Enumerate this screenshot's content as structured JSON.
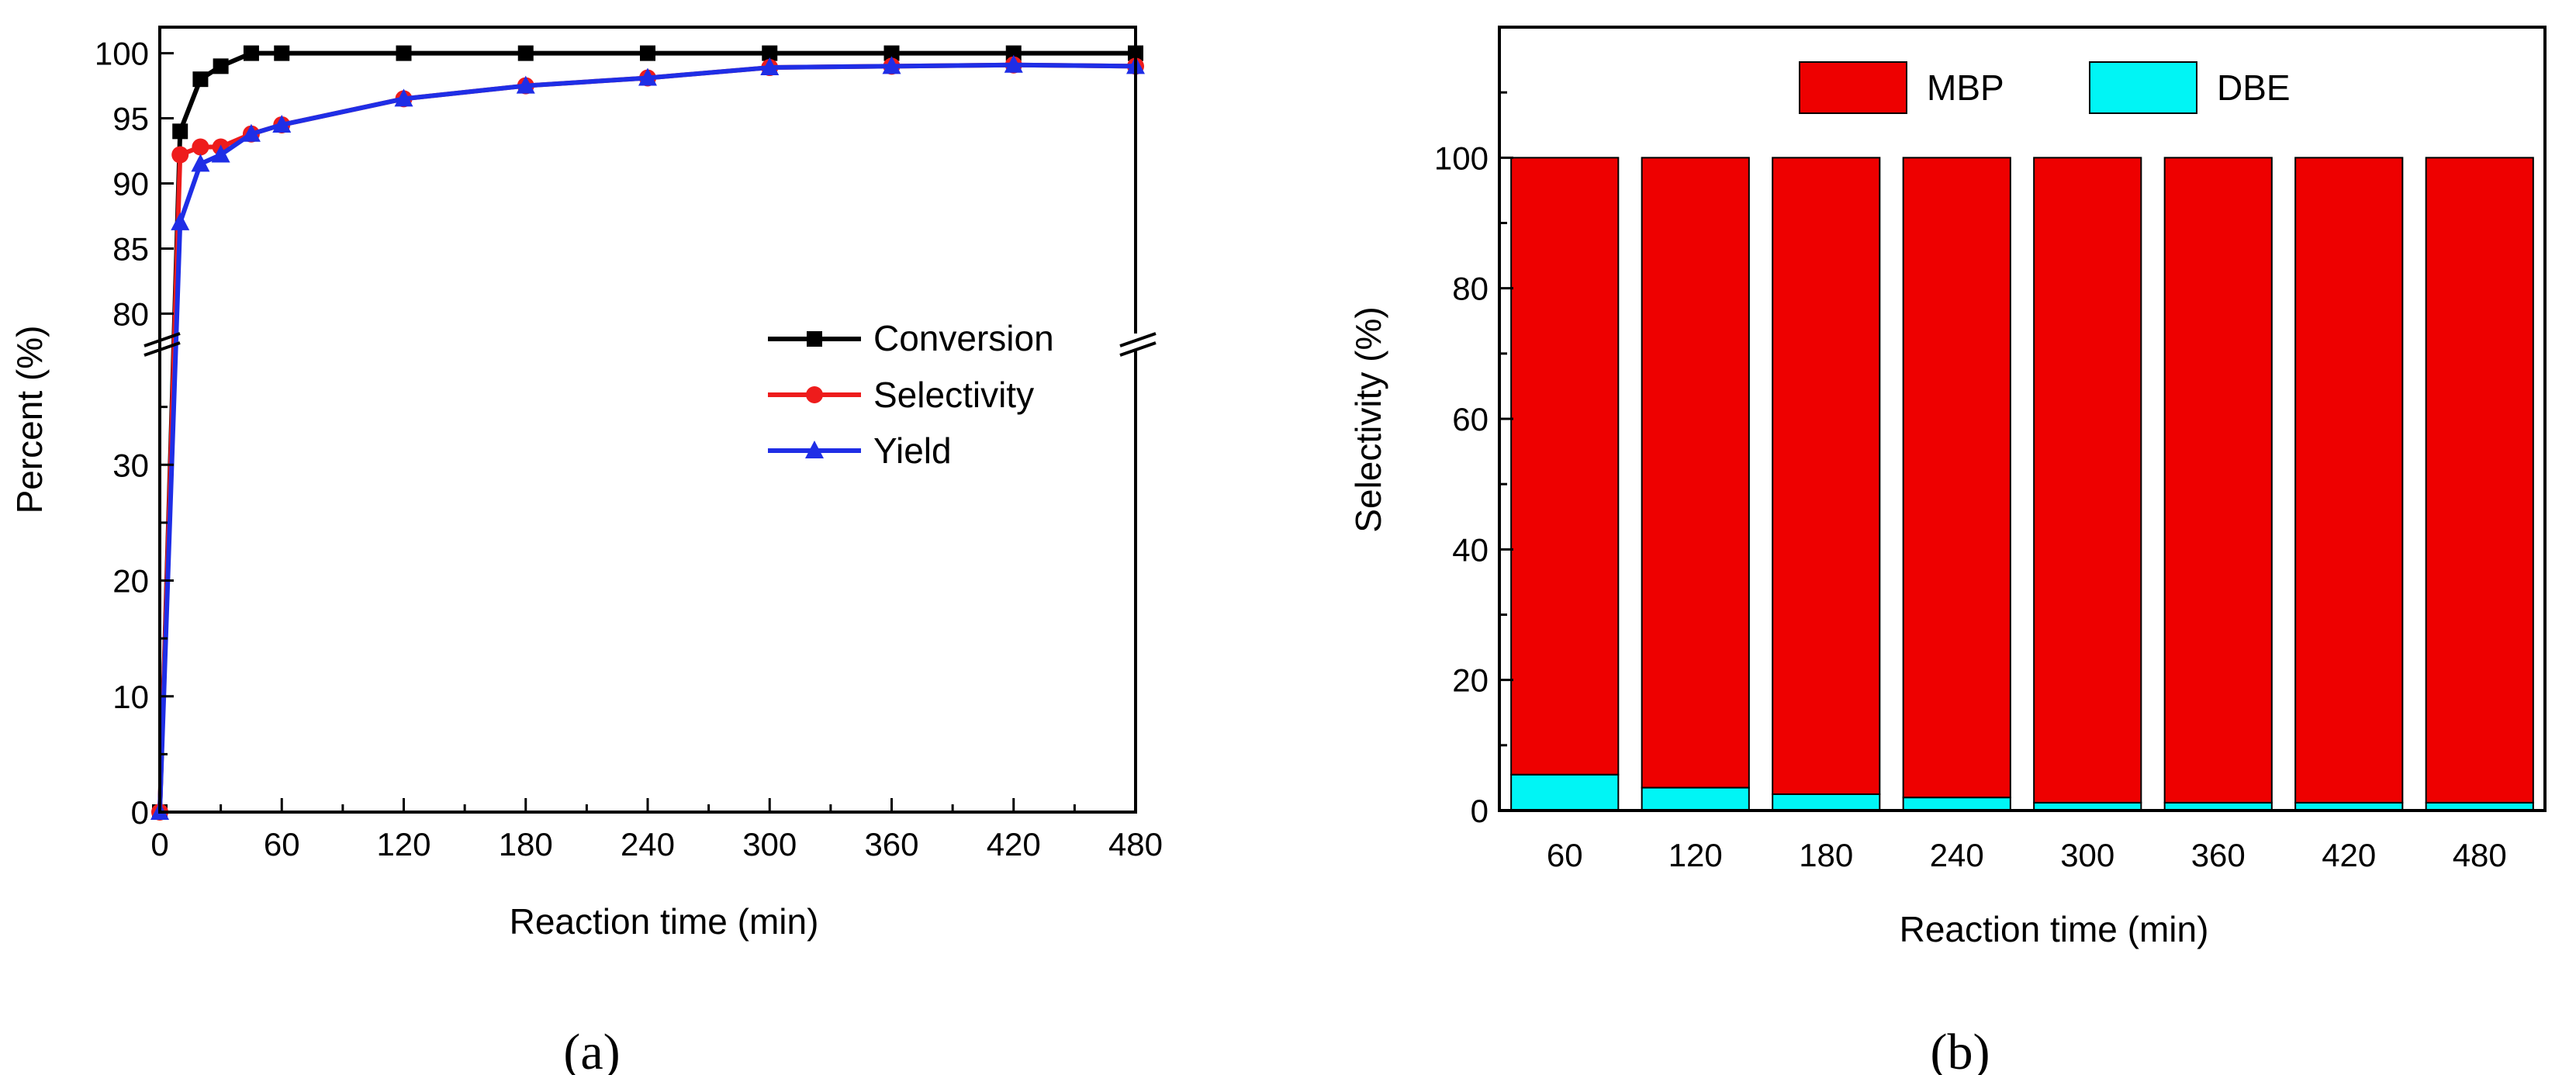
{
  "chart_data": [
    {
      "type": "line",
      "panel_label": "(a)",
      "xlabel": "Reaction time (min)",
      "ylabel": "Percent (%)",
      "xlim": [
        0,
        480
      ],
      "x_ticks": [
        "0",
        "60",
        "120",
        "180",
        "240",
        "300",
        "360",
        "420",
        "480"
      ],
      "y_break": {
        "lower_range": [
          0,
          40
        ],
        "upper_range": [
          78,
          102
        ]
      },
      "y_ticks_lower": [
        "0",
        "10",
        "20",
        "30"
      ],
      "y_ticks_upper": [
        "80",
        "85",
        "90",
        "95",
        "100"
      ],
      "legend_position": "center-right",
      "series": [
        {
          "name": "Conversion",
          "color": "#000000",
          "marker": "square",
          "x": [
            0,
            10,
            20,
            30,
            45,
            60,
            120,
            180,
            240,
            300,
            360,
            420,
            480
          ],
          "y": [
            0,
            94,
            98,
            99,
            100,
            100,
            100,
            100,
            100,
            100,
            100,
            100,
            100
          ]
        },
        {
          "name": "Selectivity",
          "color": "#ee1c1c",
          "marker": "circle",
          "x": [
            0,
            10,
            20,
            30,
            45,
            60,
            120,
            180,
            240,
            300,
            360,
            420,
            480
          ],
          "y": [
            0,
            92.2,
            92.8,
            92.8,
            93.8,
            94.5,
            96.5,
            97.5,
            98.1,
            98.9,
            99.0,
            99.1,
            99.0
          ]
        },
        {
          "name": "Yield",
          "color": "#1f2ee6",
          "marker": "triangle",
          "x": [
            0,
            10,
            20,
            30,
            45,
            60,
            120,
            180,
            240,
            300,
            360,
            420,
            480
          ],
          "y": [
            0,
            87.0,
            91.5,
            92.2,
            93.8,
            94.5,
            96.5,
            97.5,
            98.1,
            98.9,
            99.0,
            99.1,
            99.0
          ]
        }
      ]
    },
    {
      "type": "bar",
      "stacked": true,
      "panel_label": "(b)",
      "xlabel": "Reaction time (min)",
      "ylabel": "Selectivity (%)",
      "ylim": [
        0,
        120
      ],
      "y_ticks": [
        "0",
        "20",
        "40",
        "60",
        "80",
        "100"
      ],
      "categories": [
        "60",
        "120",
        "180",
        "240",
        "300",
        "360",
        "420",
        "480"
      ],
      "legend_position": "top",
      "series": [
        {
          "name": "DBE",
          "color": "#00f5f5",
          "values": [
            5.5,
            3.5,
            2.5,
            2.0,
            1.2,
            1.2,
            1.2,
            1.2
          ]
        },
        {
          "name": "MBP",
          "color": "#ee0000",
          "values": [
            94.5,
            96.5,
            97.5,
            98.0,
            98.8,
            98.8,
            98.8,
            98.8
          ]
        }
      ]
    }
  ]
}
